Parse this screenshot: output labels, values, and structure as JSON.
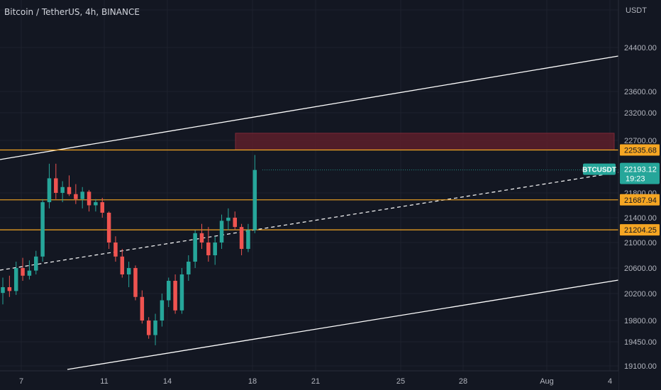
{
  "header": {
    "pair_title": "Bitcoin / TetherUS, 4h, BINANCE",
    "currency_label": "USDT"
  },
  "colors": {
    "background": "#131722",
    "up": "#26a69a",
    "down": "#ef5350",
    "level_line": "#f5a623",
    "channel_line": "#ffffff",
    "resistance_zone": "#5c1f2b",
    "resistance_zone_border": "#8d2c3b",
    "grid": "#1e222d",
    "axis_text": "#b2b5be"
  },
  "chart_data": {
    "type": "candlestick",
    "price_axis": {
      "ticks": [
        "24400.00",
        "23600.00",
        "23200.00",
        "22700.00",
        "21800.00",
        "21400.00",
        "21000.00",
        "20600.00",
        "20200.00",
        "19800.00",
        "19450.00",
        "19100.00"
      ]
    },
    "time_axis": {
      "ticks": [
        "7",
        "11",
        "14",
        "18",
        "21",
        "25",
        "28",
        "Aug",
        "4"
      ]
    },
    "horizontal_levels": [
      {
        "label": "22535.68",
        "value": 22535.68
      },
      {
        "label": "21687.94",
        "value": 21687.94
      },
      {
        "label": "21204.25",
        "value": 21204.25
      }
    ],
    "last_price": {
      "symbol": "BTCUSDT",
      "price": "22193.12",
      "countdown": "19:23"
    },
    "resistance_zone": {
      "price_low": 22535.68,
      "price_high": 22830
    },
    "candles": [
      {
        "o": 20210,
        "h": 20450,
        "l": 20040,
        "c": 20300
      },
      {
        "o": 20300,
        "h": 20480,
        "l": 20150,
        "c": 20240
      },
      {
        "o": 20240,
        "h": 20700,
        "l": 20180,
        "c": 20600
      },
      {
        "o": 20600,
        "h": 20760,
        "l": 20400,
        "c": 20480
      },
      {
        "o": 20480,
        "h": 20720,
        "l": 20420,
        "c": 20560
      },
      {
        "o": 20560,
        "h": 20870,
        "l": 20500,
        "c": 20780
      },
      {
        "o": 20780,
        "h": 21700,
        "l": 20700,
        "c": 21650
      },
      {
        "o": 21650,
        "h": 22300,
        "l": 21550,
        "c": 22050
      },
      {
        "o": 22050,
        "h": 22300,
        "l": 21700,
        "c": 21800
      },
      {
        "o": 21800,
        "h": 22000,
        "l": 21650,
        "c": 21900
      },
      {
        "o": 21900,
        "h": 22100,
        "l": 21750,
        "c": 21780
      },
      {
        "o": 21780,
        "h": 21950,
        "l": 21620,
        "c": 21700
      },
      {
        "o": 21700,
        "h": 21900,
        "l": 21550,
        "c": 21820
      },
      {
        "o": 21820,
        "h": 21850,
        "l": 21500,
        "c": 21600
      },
      {
        "o": 21600,
        "h": 21700,
        "l": 21500,
        "c": 21650
      },
      {
        "o": 21650,
        "h": 21720,
        "l": 21400,
        "c": 21480
      },
      {
        "o": 21480,
        "h": 21500,
        "l": 20900,
        "c": 21000
      },
      {
        "o": 21000,
        "h": 21100,
        "l": 20700,
        "c": 20780
      },
      {
        "o": 20780,
        "h": 20900,
        "l": 20450,
        "c": 20500
      },
      {
        "o": 20500,
        "h": 20700,
        "l": 20300,
        "c": 20600
      },
      {
        "o": 20600,
        "h": 20640,
        "l": 20100,
        "c": 20150
      },
      {
        "o": 20150,
        "h": 20250,
        "l": 19750,
        "c": 19800
      },
      {
        "o": 19800,
        "h": 19850,
        "l": 19500,
        "c": 19560
      },
      {
        "o": 19560,
        "h": 19900,
        "l": 19400,
        "c": 19800
      },
      {
        "o": 19800,
        "h": 20200,
        "l": 19700,
        "c": 20100
      },
      {
        "o": 20100,
        "h": 20450,
        "l": 20000,
        "c": 20400
      },
      {
        "o": 20400,
        "h": 20500,
        "l": 19900,
        "c": 19950
      },
      {
        "o": 19950,
        "h": 20600,
        "l": 19900,
        "c": 20500
      },
      {
        "o": 20500,
        "h": 20800,
        "l": 20400,
        "c": 20700
      },
      {
        "o": 20700,
        "h": 21200,
        "l": 20600,
        "c": 21150
      },
      {
        "o": 21150,
        "h": 21300,
        "l": 20900,
        "c": 21000
      },
      {
        "o": 21000,
        "h": 21250,
        "l": 20700,
        "c": 20800
      },
      {
        "o": 20800,
        "h": 21100,
        "l": 20650,
        "c": 21000
      },
      {
        "o": 21000,
        "h": 21450,
        "l": 20900,
        "c": 21350
      },
      {
        "o": 21350,
        "h": 21550,
        "l": 21200,
        "c": 21400
      },
      {
        "o": 21400,
        "h": 21500,
        "l": 21200,
        "c": 21250
      },
      {
        "o": 21250,
        "h": 21300,
        "l": 20800,
        "c": 20900
      },
      {
        "o": 20900,
        "h": 21300,
        "l": 20850,
        "c": 21200
      },
      {
        "o": 21200,
        "h": 22450,
        "l": 21150,
        "c": 22193.12
      }
    ]
  }
}
